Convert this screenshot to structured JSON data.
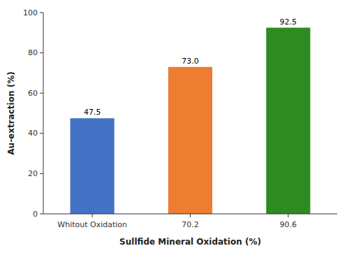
{
  "chart_data": {
    "type": "bar",
    "xlabel": "Sullfide Mineral Oxidation (%)",
    "ylabel": "Au-extraction (%)",
    "categories": [
      "Whitout Oxidation",
      "70.2",
      "90.6"
    ],
    "values": [
      47.5,
      73.0,
      92.5
    ],
    "value_labels": [
      "47.5",
      "73.0",
      "92.5"
    ],
    "colors": [
      "#4472c4",
      "#ed7d31",
      "#2e8b22"
    ],
    "ylim": [
      0,
      100
    ],
    "yticks": [
      0,
      20,
      40,
      60,
      80,
      100
    ],
    "grid": false,
    "data_labels": true
  }
}
